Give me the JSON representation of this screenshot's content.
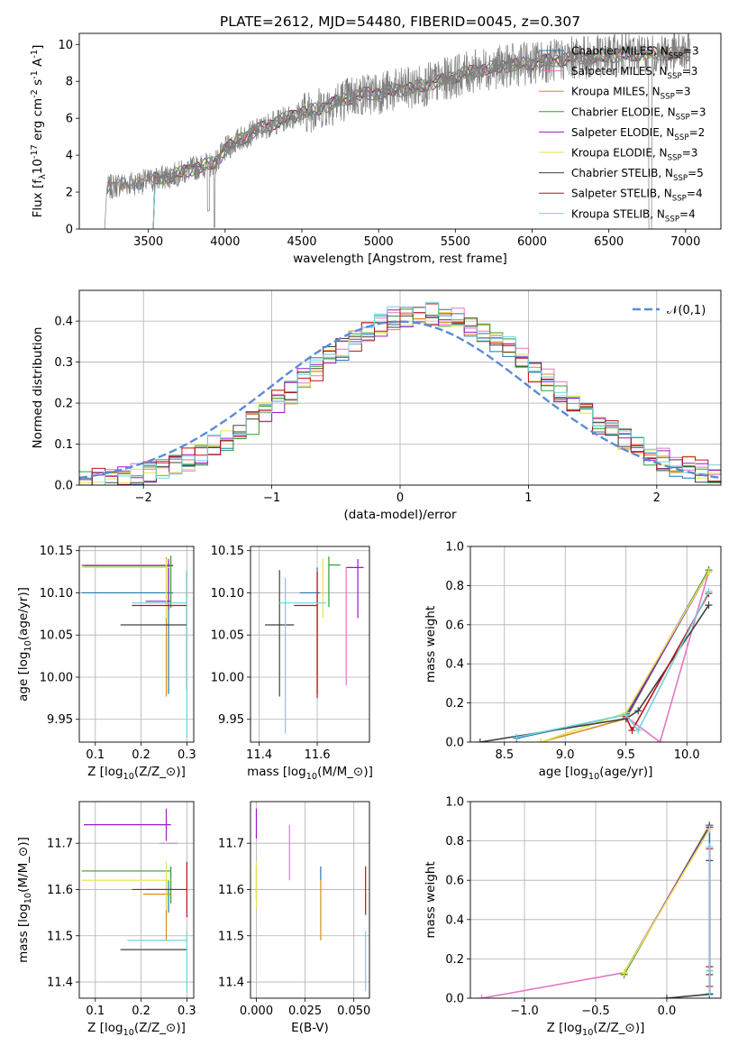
{
  "figure": {
    "title": "PLATE=2612, MJD=54480, FIBERID=0045, z=0.307"
  },
  "colors": {
    "Chabrier MILES": "#1f77b4",
    "Salpeter MILES": "#e377c2",
    "Kroupa MILES": "#d98c1a",
    "Chabrier ELODIE": "#2ca02c",
    "Salpeter ELODIE": "#9b19c9",
    "Kroupa ELODIE": "#e3e352",
    "Chabrier STELIB": "#404040",
    "Salpeter STELIB": "#c0101a",
    "Kroupa STELIB": "#6fd3dc",
    "data": "#7f7f7f",
    "gauss": "#5b8bd8"
  },
  "chart_data": [
    {
      "type": "line",
      "id": "spectrum",
      "xlabel": "wavelength [Angstrom, rest frame]",
      "ylabel": "Flux [f$_\\lambda$10$^{-17}$ erg cm$^{-2}$ s$^{-1}$ A$^{-1}$]",
      "xlim": [
        3050,
        7230
      ],
      "ylim": [
        0,
        10.6
      ],
      "xticks": [
        3500,
        4000,
        4500,
        5000,
        5500,
        6000,
        6500,
        7000
      ],
      "yticks": [
        0,
        2,
        4,
        6,
        8,
        10
      ],
      "legend": "right",
      "continuum": {
        "x": [
          3230,
          3300,
          3400,
          3500,
          3600,
          3700,
          3800,
          3900,
          3950,
          4000,
          4100,
          4200,
          4300,
          4400,
          4500,
          4600,
          4700,
          4800,
          4900,
          5000,
          5100,
          5200,
          5300,
          5400,
          5500,
          5600,
          5700,
          5800,
          5900,
          6000,
          6100,
          6200,
          6300,
          6400,
          6500,
          6600,
          6700,
          6800,
          6900,
          7030
        ],
        "y": [
          2.2,
          2.4,
          2.5,
          2.6,
          2.8,
          3.0,
          3.3,
          3.5,
          3.7,
          4.3,
          4.9,
          5.3,
          5.7,
          6.0,
          6.3,
          6.5,
          6.8,
          7.1,
          7.3,
          7.4,
          7.5,
          7.6,
          7.8,
          8.0,
          8.3,
          8.5,
          8.7,
          8.8,
          8.9,
          9.0,
          9.1,
          9.2,
          9.3,
          9.3,
          9.4,
          9.4,
          9.5,
          9.5,
          9.5,
          9.5
        ]
      },
      "series": [
        {
          "name": "Chabrier MILES, N$_{SSP}$=3"
        },
        {
          "name": "Salpeter MILES, N$_{SSP}$=3"
        },
        {
          "name": "Kroupa MILES, N$_{SSP}$=3"
        },
        {
          "name": "Chabrier ELODIE, N$_{SSP}$=3"
        },
        {
          "name": "Salpeter ELODIE, N$_{SSP}$=2"
        },
        {
          "name": "Kroupa ELODIE, N$_{SSP}$=3"
        },
        {
          "name": "Chabrier STELIB, N$_{SSP}$=5"
        },
        {
          "name": "Salpeter STELIB, N$_{SSP}$=4"
        },
        {
          "name": "Kroupa STELIB, N$_{SSP}$=4"
        }
      ]
    },
    {
      "type": "line",
      "id": "residuals",
      "xlabel": "(data-model)/error",
      "ylabel": "Normed distribution",
      "xlim": [
        -2.5,
        2.5
      ],
      "ylim": [
        0,
        0.475
      ],
      "xticks": [
        -2,
        -1,
        0,
        1,
        2
      ],
      "yticks": [
        0.0,
        0.1,
        0.2,
        0.3,
        0.4
      ],
      "grid": true,
      "legend": "top-right",
      "gauss_label": "$\\mathcal{N}(0,1)$",
      "bin_width": 0.1
    },
    {
      "type": "scatter",
      "id": "age-vs-Z",
      "xlabel": "Z [log$_{10}$($Z$/$Z_\\odot$)]",
      "ylabel": "age  [log$_{10}$($age$/$yr$)]",
      "xlim": [
        0.065,
        0.315
      ],
      "ylim": [
        9.923,
        10.155
      ],
      "xticks": [
        0.1,
        0.2,
        0.3
      ],
      "yticks": [
        9.95,
        10.0,
        10.05,
        10.1,
        10.15
      ],
      "grid": true,
      "points": [
        {
          "model": "Chabrier MILES",
          "x": 0.26,
          "xerr": [
            0.19,
            0.01
          ],
          "y": 10.1,
          "yerr": [
            0.12,
            0.03
          ]
        },
        {
          "model": "Salpeter MILES",
          "x": 0.26,
          "xerr": [
            0.19,
            0.01
          ],
          "y": 10.133,
          "yerr": [
            0.02,
            0.005
          ]
        },
        {
          "model": "Kroupa MILES",
          "x": 0.255,
          "xerr": [
            0.185,
            0.01
          ],
          "y": 10.132,
          "yerr": [
            0.155,
            0.01
          ]
        },
        {
          "model": "Chabrier ELODIE",
          "x": 0.265,
          "xerr": [
            0.19,
            0.005
          ],
          "y": 10.132,
          "yerr": [
            0.05,
            0.012
          ]
        },
        {
          "model": "Salpeter ELODIE",
          "x": 0.26,
          "xerr": [
            0.05,
            0.005
          ],
          "y": 10.09,
          "yerr": [
            0.01,
            0.05
          ]
        },
        {
          "model": "Kroupa ELODIE",
          "x": 0.255,
          "xerr": [
            0.185,
            0.01
          ],
          "y": 10.13,
          "yerr": [
            0.06,
            0.01
          ]
        },
        {
          "model": "Chabrier STELIB",
          "x": 0.3,
          "xerr": [
            0.145,
            0.0
          ],
          "y": 10.062,
          "yerr": [
            0.0,
            0.0
          ]
        },
        {
          "model": "Salpeter STELIB",
          "x": 0.3,
          "xerr": [
            0.12,
            0.0
          ],
          "y": 10.085,
          "yerr": [
            0.1,
            0.04
          ]
        },
        {
          "model": "Kroupa STELIB",
          "x": 0.3,
          "xerr": [
            0.12,
            0.0
          ],
          "y": 10.088,
          "yerr": [
            0.16,
            0.04
          ]
        }
      ]
    },
    {
      "type": "scatter",
      "id": "age-vs-mass",
      "xlabel": "mass [log$_{10}$($M$/$M_\\odot$)]",
      "ylabel": "",
      "xlim": [
        11.37,
        11.78
      ],
      "ylim": [
        9.923,
        10.155
      ],
      "xticks": [
        11.4,
        11.6
      ],
      "yticks": [
        9.95,
        10.0,
        10.05,
        10.1,
        10.15
      ],
      "grid": true,
      "points": [
        {
          "model": "Chabrier MILES",
          "x": 11.6,
          "xerr": [
            0.06,
            0.01
          ],
          "y": 10.1,
          "yerr": [
            0.12,
            0.03
          ]
        },
        {
          "model": "Salpeter MILES",
          "x": 11.7,
          "xerr": [
            0.0,
            0.0
          ],
          "y": 10.1,
          "yerr": [
            0.11,
            0.03
          ]
        },
        {
          "model": "Kroupa MILES",
          "x": 11.6,
          "xerr": [
            0.0,
            0.0
          ],
          "y": 10.08,
          "yerr": [
            0.1,
            0.02
          ]
        },
        {
          "model": "Chabrier ELODIE",
          "x": 11.64,
          "xerr": [
            0.0,
            0.04
          ],
          "y": 10.133,
          "yerr": [
            0.05,
            0.01
          ]
        },
        {
          "model": "Salpeter ELODIE",
          "x": 11.74,
          "xerr": [
            0.04,
            0.02
          ],
          "y": 10.13,
          "yerr": [
            0.06,
            0.01
          ]
        },
        {
          "model": "Kroupa ELODIE",
          "x": 11.62,
          "xerr": [
            0.0,
            0.0
          ],
          "y": 10.13,
          "yerr": [
            0.06,
            0.01
          ]
        },
        {
          "model": "Chabrier STELIB",
          "x": 11.47,
          "xerr": [
            0.05,
            0.05
          ],
          "y": 10.062,
          "yerr": [
            0.085,
            0.065
          ]
        },
        {
          "model": "Salpeter STELIB",
          "x": 11.6,
          "xerr": [
            0.08,
            0.0
          ],
          "y": 10.085,
          "yerr": [
            0.11,
            0.04
          ]
        },
        {
          "model": "Kroupa STELIB",
          "x": 11.49,
          "xerr": [
            0.02,
            0.14
          ],
          "y": 10.088,
          "yerr": [
            0.155,
            0.03
          ]
        }
      ]
    },
    {
      "type": "line",
      "id": "weight-vs-age",
      "xlabel": "age  [log$_{10}$($age$/$yr$)]",
      "ylabel": "mass weight",
      "xlim": [
        8.22,
        10.28
      ],
      "ylim": [
        0,
        1.0
      ],
      "xticks": [
        8.5,
        9.0,
        9.5,
        10.0
      ],
      "yticks": [
        0.0,
        0.2,
        0.4,
        0.6,
        0.8,
        1.0
      ],
      "grid": true,
      "series": [
        {
          "model": "Chabrier MILES",
          "x": [
            8.6,
            9.5,
            10.18
          ],
          "y": [
            0.02,
            0.14,
            0.88
          ]
        },
        {
          "model": "Salpeter MILES",
          "x": [
            9.5,
            9.78,
            10.18
          ],
          "y": [
            0.13,
            0.0,
            0.87
          ]
        },
        {
          "model": "Kroupa MILES",
          "x": [
            8.8,
            9.5,
            10.18
          ],
          "y": [
            0.0,
            0.12,
            0.88
          ]
        },
        {
          "model": "Chabrier ELODIE",
          "x": [
            9.5,
            10.18
          ],
          "y": [
            0.12,
            0.88
          ]
        },
        {
          "model": "Salpeter ELODIE",
          "x": [
            9.5,
            10.18
          ],
          "y": [
            0.13,
            0.87
          ]
        },
        {
          "model": "Kroupa ELODIE",
          "x": [
            8.8,
            9.5,
            10.18
          ],
          "y": [
            0.0,
            0.15,
            0.87
          ]
        },
        {
          "model": "Chabrier STELIB",
          "x": [
            8.3,
            9.5,
            9.6,
            10.18
          ],
          "y": [
            0.0,
            0.12,
            0.16,
            0.7
          ]
        },
        {
          "model": "Salpeter STELIB",
          "x": [
            9.5,
            9.55,
            10.18
          ],
          "y": [
            0.13,
            0.06,
            0.76
          ]
        },
        {
          "model": "Kroupa STELIB",
          "x": [
            8.6,
            9.5,
            9.6,
            10.18
          ],
          "y": [
            0.025,
            0.14,
            0.06,
            0.77
          ]
        }
      ]
    },
    {
      "type": "scatter",
      "id": "mass-vs-Z",
      "xlabel": "Z [log$_{10}$($Z$/$Z_\\odot$)]",
      "ylabel": "mass [log$_{10}$($M$/$M_\\odot$)]",
      "xlim": [
        0.065,
        0.315
      ],
      "ylim": [
        11.365,
        11.79
      ],
      "xticks": [
        0.1,
        0.2,
        0.3
      ],
      "yticks": [
        11.4,
        11.5,
        11.6,
        11.7
      ],
      "grid": true,
      "points": [
        {
          "model": "Chabrier MILES",
          "x": 0.26,
          "xerr": [
            0.05,
            0.01
          ],
          "y": 11.6,
          "yerr": [
            0.05,
            0.02
          ]
        },
        {
          "model": "Salpeter MILES",
          "x": 0.26,
          "xerr": [
            0.02,
            0.02
          ],
          "y": 11.7,
          "yerr": [
            0.0,
            0.0
          ]
        },
        {
          "model": "Kroupa MILES",
          "x": 0.255,
          "xerr": [
            0.05,
            0.01
          ],
          "y": 11.59,
          "yerr": [
            0.1,
            0.03
          ]
        },
        {
          "model": "Chabrier ELODIE",
          "x": 0.265,
          "xerr": [
            0.195,
            0.0
          ],
          "y": 11.64,
          "yerr": [
            0.07,
            0.01
          ]
        },
        {
          "model": "Salpeter ELODIE",
          "x": 0.255,
          "xerr": [
            0.18,
            0.01
          ],
          "y": 11.74,
          "yerr": [
            0.035,
            0.035
          ]
        },
        {
          "model": "Kroupa ELODIE",
          "x": 0.255,
          "xerr": [
            0.185,
            0.01
          ],
          "y": 11.62,
          "yerr": [
            0.065,
            0.04
          ]
        },
        {
          "model": "Chabrier STELIB",
          "x": 0.3,
          "xerr": [
            0.145,
            0.0
          ],
          "y": 11.47,
          "yerr": [
            0.0,
            0.0
          ]
        },
        {
          "model": "Salpeter STELIB",
          "x": 0.3,
          "xerr": [
            0.12,
            0.0
          ],
          "y": 11.6,
          "yerr": [
            0.06,
            0.06
          ]
        },
        {
          "model": "Kroupa STELIB",
          "x": 0.3,
          "xerr": [
            0.13,
            0.0
          ],
          "y": 11.49,
          "yerr": [
            0.11,
            0.02
          ]
        }
      ]
    },
    {
      "type": "scatter",
      "id": "mass-vs-ebv",
      "xlabel": "E(B-V)",
      "ylabel": "",
      "xlim": [
        -0.003,
        0.058
      ],
      "ylim": [
        11.365,
        11.79
      ],
      "xticks": [
        0.0,
        0.025,
        0.05
      ],
      "yticks": [
        11.4,
        11.5,
        11.6,
        11.7
      ],
      "grid": true,
      "points": [
        {
          "model": "Chabrier MILES",
          "x": 0.033,
          "xerr": [
            0,
            0
          ],
          "y": 11.62,
          "yerr": [
            0.0,
            0.03
          ]
        },
        {
          "model": "Salpeter MILES",
          "x": 0.017,
          "xerr": [
            0,
            0
          ],
          "y": 11.7,
          "yerr": [
            0.08,
            0.04
          ]
        },
        {
          "model": "Kroupa MILES",
          "x": 0.033,
          "xerr": [
            0,
            0
          ],
          "y": 11.55,
          "yerr": [
            0.06,
            0.07
          ]
        },
        {
          "model": "Chabrier ELODIE",
          "x": 0.0,
          "xerr": [
            0,
            0
          ],
          "y": 11.64,
          "yerr": [
            0.06,
            0.01
          ]
        },
        {
          "model": "Salpeter ELODIE",
          "x": 0.0,
          "xerr": [
            0,
            0
          ],
          "y": 11.74,
          "yerr": [
            0.03,
            0.035
          ]
        },
        {
          "model": "Kroupa ELODIE",
          "x": 0.0,
          "xerr": [
            0,
            0
          ],
          "y": 11.62,
          "yerr": [
            0.06,
            0.04
          ]
        },
        {
          "model": "Chabrier STELIB",
          "x": 0.056,
          "xerr": [
            0,
            0
          ],
          "y": 11.47,
          "yerr": [
            0.0,
            0.0
          ]
        },
        {
          "model": "Salpeter STELIB",
          "x": 0.056,
          "xerr": [
            0,
            0
          ],
          "y": 11.6,
          "yerr": [
            0.055,
            0.05
          ]
        },
        {
          "model": "Kroupa STELIB",
          "x": 0.056,
          "xerr": [
            0,
            0
          ],
          "y": 11.49,
          "yerr": [
            0.11,
            0.02
          ]
        }
      ]
    },
    {
      "type": "line",
      "id": "weight-vs-Z",
      "xlabel": "Z [log$_{10}$($Z$/$Z_\\odot$)]",
      "ylabel": "mass weight",
      "xlim": [
        -1.38,
        0.38
      ],
      "ylim": [
        0,
        1.0
      ],
      "xticks": [
        -1.0,
        -0.5,
        0.0
      ],
      "yticks": [
        0.0,
        0.2,
        0.4,
        0.6,
        0.8,
        1.0
      ],
      "grid": true,
      "series": [
        {
          "model": "Chabrier MILES",
          "x": [
            0.3,
            0.3,
            0.3
          ],
          "y": [
            0.02,
            0.14,
            0.88
          ]
        },
        {
          "model": "Salpeter MILES",
          "x": [
            -1.3,
            -0.3,
            0.3
          ],
          "y": [
            0.0,
            0.13,
            0.87
          ]
        },
        {
          "model": "Kroupa MILES",
          "x": [
            -0.3,
            0.3
          ],
          "y": [
            0.12,
            0.88
          ]
        },
        {
          "model": "Chabrier ELODIE",
          "x": [
            -0.3,
            0.3
          ],
          "y": [
            0.12,
            0.88
          ]
        },
        {
          "model": "Salpeter ELODIE",
          "x": [
            -0.3,
            0.3
          ],
          "y": [
            0.13,
            0.87
          ]
        },
        {
          "model": "Kroupa ELODIE",
          "x": [
            -0.3,
            0.3
          ],
          "y": [
            0.13,
            0.86
          ]
        },
        {
          "model": "Chabrier STELIB",
          "x": [
            0.0,
            0.3,
            0.3,
            0.3
          ],
          "y": [
            0.0,
            0.02,
            0.12,
            0.7
          ]
        },
        {
          "model": "Salpeter STELIB",
          "x": [
            0.3,
            0.3,
            0.3
          ],
          "y": [
            0.06,
            0.16,
            0.76
          ]
        },
        {
          "model": "Kroupa STELIB",
          "x": [
            0.3,
            0.3,
            0.3
          ],
          "y": [
            0.025,
            0.14,
            0.77
          ]
        }
      ]
    }
  ]
}
